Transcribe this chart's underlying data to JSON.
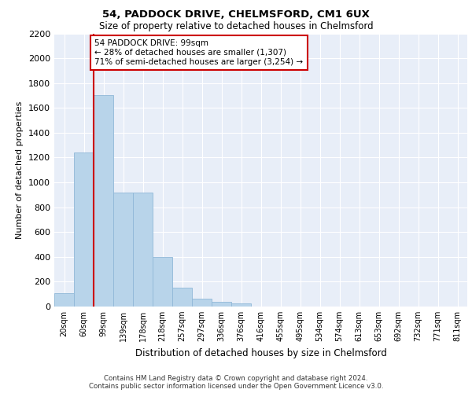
{
  "title1": "54, PADDOCK DRIVE, CHELMSFORD, CM1 6UX",
  "title2": "Size of property relative to detached houses in Chelmsford",
  "xlabel": "Distribution of detached houses by size in Chelmsford",
  "ylabel": "Number of detached properties",
  "bar_labels": [
    "20sqm",
    "60sqm",
    "99sqm",
    "139sqm",
    "178sqm",
    "218sqm",
    "257sqm",
    "297sqm",
    "336sqm",
    "376sqm",
    "416sqm",
    "455sqm",
    "495sqm",
    "534sqm",
    "574sqm",
    "613sqm",
    "653sqm",
    "692sqm",
    "732sqm",
    "771sqm",
    "811sqm"
  ],
  "bar_values": [
    110,
    1240,
    1700,
    920,
    920,
    400,
    150,
    65,
    35,
    25,
    0,
    0,
    0,
    0,
    0,
    0,
    0,
    0,
    0,
    0,
    0
  ],
  "bar_color": "#b8d4ea",
  "bar_edge_color": "#90b8d8",
  "vline_color": "#cc0000",
  "annotation_text": "54 PADDOCK DRIVE: 99sqm\n← 28% of detached houses are smaller (1,307)\n71% of semi-detached houses are larger (3,254) →",
  "annotation_box_color": "#cc0000",
  "ylim": [
    0,
    2200
  ],
  "yticks": [
    0,
    200,
    400,
    600,
    800,
    1000,
    1200,
    1400,
    1600,
    1800,
    2000,
    2200
  ],
  "bg_color": "#e8eef8",
  "footer1": "Contains HM Land Registry data © Crown copyright and database right 2024.",
  "footer2": "Contains public sector information licensed under the Open Government Licence v3.0."
}
